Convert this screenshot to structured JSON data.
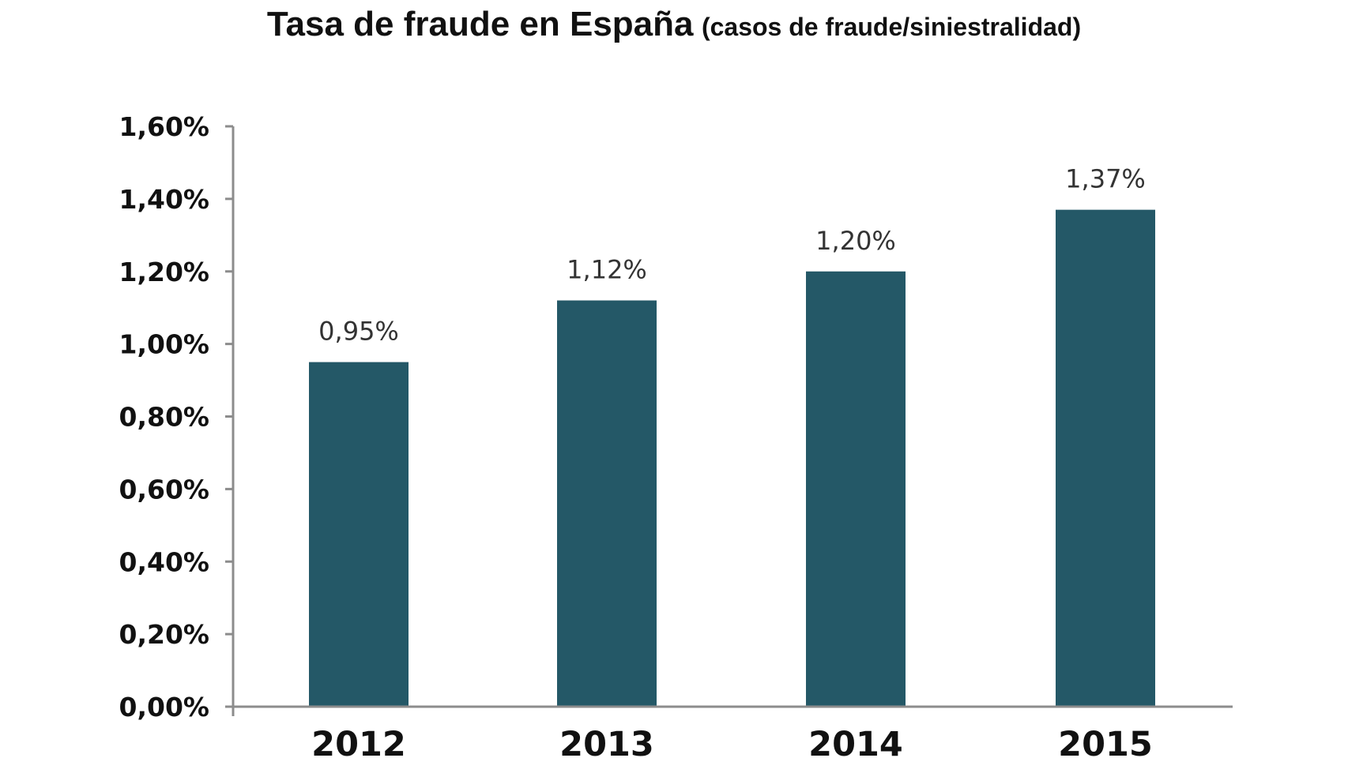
{
  "chart_data": {
    "type": "bar",
    "title": "Tasa de fraude en España",
    "subtitle": "(casos de fraude/siniestralidad)",
    "categories": [
      "2012",
      "2013",
      "2014",
      "2015"
    ],
    "values": [
      0.95,
      1.12,
      1.2,
      1.37
    ],
    "data_labels": [
      "0,95%",
      "1,12%",
      "1,20%",
      "1,37%"
    ],
    "ylim": [
      0,
      1.6
    ],
    "yticks": [
      0,
      0.2,
      0.4,
      0.6,
      0.8,
      1.0,
      1.2,
      1.4,
      1.6
    ],
    "ytick_labels": [
      "0,00%",
      "0,20%",
      "0,40%",
      "0,60%",
      "0,80%",
      "1,00%",
      "1,20%",
      "1,40%",
      "1,60%"
    ],
    "xlabel": "",
    "ylabel": "",
    "grid": false,
    "legend": "none",
    "bar_color": "#245867",
    "axis_color": "#8c8c8c"
  }
}
